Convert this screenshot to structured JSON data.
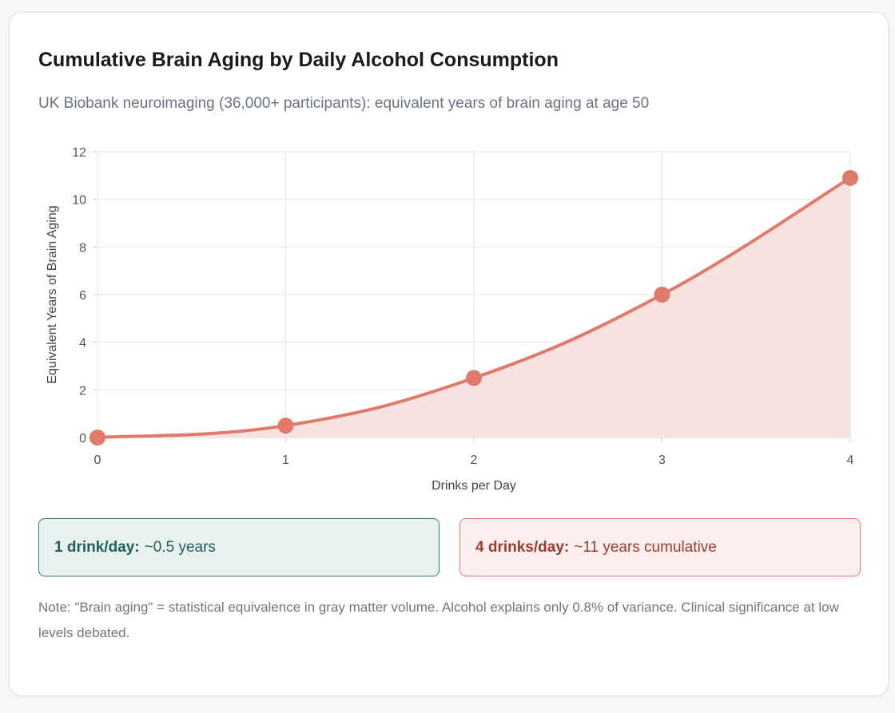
{
  "card": {
    "title": "Cumulative Brain Aging by Daily Alcohol Consumption",
    "subtitle": "UK Biobank neuroimaging (36,000+ participants): equivalent years of brain aging at age 50"
  },
  "chart_data": {
    "type": "area",
    "x": [
      0,
      1,
      2,
      3,
      4
    ],
    "values": [
      0,
      0.5,
      2.5,
      6,
      10.9
    ],
    "xlabel": "Drinks per Day",
    "ylabel": "Equivalent Years of Brain Aging",
    "xlim": [
      0,
      4
    ],
    "ylim": [
      0,
      12
    ],
    "xticks": [
      "0",
      "1",
      "2",
      "3",
      "4"
    ],
    "yticks": [
      "0",
      "2",
      "4",
      "6",
      "8",
      "10",
      "12"
    ],
    "grid": true,
    "line_color": "#e07a6a",
    "fill_color": "#f9e3e1"
  },
  "callouts": [
    {
      "bold": "1 drink/day:",
      "text": "~0.5 years"
    },
    {
      "bold": "4 drinks/day:",
      "text": "~11 years cumulative"
    }
  ],
  "note": "Note: \"Brain aging\" = statistical equivalence in gray matter volume. Alcohol explains only 0.8% of variance. Clinical significance at low levels debated."
}
